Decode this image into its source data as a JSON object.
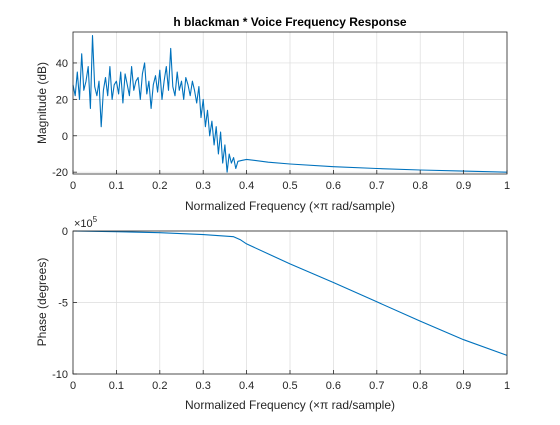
{
  "figure_title": "h blackman * Voice Frequency Response",
  "chart_data": [
    {
      "type": "line",
      "title": "h blackman * Voice Frequency Response",
      "xlabel": "Normalized Frequency  (×π rad/sample)",
      "ylabel": "Magnitude (dB)",
      "xlim": [
        0,
        1
      ],
      "ylim": [
        -21,
        57
      ],
      "xticks": [
        "0",
        "0.1",
        "0.2",
        "0.3",
        "0.4",
        "0.5",
        "0.6",
        "0.7",
        "0.8",
        "0.9",
        "1"
      ],
      "yticks": [
        "-20",
        "0",
        "20",
        "40"
      ],
      "ytick_values": [
        -20,
        0,
        20,
        40
      ],
      "grid": true,
      "color": "#0072BD",
      "series": [
        {
          "x": [
            0,
            0.005,
            0.01,
            0.015,
            0.02,
            0.025,
            0.03,
            0.035,
            0.04,
            0.045,
            0.05,
            0.055,
            0.06,
            0.065,
            0.07,
            0.075,
            0.08,
            0.085,
            0.09,
            0.095,
            0.1,
            0.105,
            0.11,
            0.115,
            0.12,
            0.125,
            0.13,
            0.135,
            0.14,
            0.145,
            0.15,
            0.155,
            0.16,
            0.165,
            0.17,
            0.175,
            0.18,
            0.185,
            0.19,
            0.195,
            0.2,
            0.205,
            0.21,
            0.215,
            0.22,
            0.225,
            0.23,
            0.235,
            0.24,
            0.245,
            0.25,
            0.255,
            0.26,
            0.265,
            0.27,
            0.275,
            0.28,
            0.285,
            0.29,
            0.295,
            0.3,
            0.305,
            0.31,
            0.315,
            0.32,
            0.325,
            0.33,
            0.335,
            0.34,
            0.345,
            0.35,
            0.355,
            0.36,
            0.365,
            0.37,
            0.375,
            0.38,
            0.39,
            0.4,
            0.45,
            0.5,
            0.6,
            0.7,
            0.8,
            0.9,
            1.0
          ],
          "y": [
            28,
            22,
            35,
            20,
            45,
            25,
            30,
            38,
            15,
            55,
            27,
            22,
            30,
            5,
            25,
            32,
            22,
            38,
            20,
            28,
            30,
            23,
            35,
            18,
            34,
            28,
            22,
            38,
            25,
            30,
            32,
            20,
            34,
            40,
            23,
            30,
            15,
            28,
            33,
            24,
            36,
            20,
            30,
            38,
            25,
            48,
            27,
            22,
            35,
            25,
            30,
            20,
            32,
            28,
            22,
            30,
            25,
            18,
            27,
            10,
            20,
            5,
            14,
            0,
            8,
            -5,
            5,
            -10,
            2,
            -15,
            -5,
            -20,
            -10,
            -15,
            -12,
            -18,
            -14,
            -13.5,
            -13,
            -14.5,
            -15.5,
            -17,
            -18,
            -18.8,
            -19.4,
            -20
          ]
        }
      ]
    },
    {
      "type": "line",
      "title": "",
      "xlabel": "Normalized Frequency  (×π rad/sample)",
      "ylabel": "Phase (degrees)",
      "xlim": [
        0,
        1
      ],
      "ylim": [
        -10,
        0
      ],
      "xticks": [
        "0",
        "0.1",
        "0.2",
        "0.3",
        "0.4",
        "0.5",
        "0.6",
        "0.7",
        "0.8",
        "0.9",
        "1"
      ],
      "yticks": [
        "0",
        "-5",
        "-10"
      ],
      "ytick_values": [
        0,
        -5,
        -10
      ],
      "exponent_base": "×10",
      "exponent_power": "5",
      "grid": true,
      "color": "#0072BD",
      "series": [
        {
          "x": [
            0,
            0.1,
            0.2,
            0.3,
            0.37,
            0.385,
            0.4,
            0.5,
            0.6,
            0.7,
            0.8,
            0.9,
            1.0
          ],
          "y": [
            0,
            -0.05,
            -0.12,
            -0.25,
            -0.4,
            -0.6,
            -0.9,
            -2.3,
            -3.6,
            -4.95,
            -6.3,
            -7.6,
            -8.7
          ]
        }
      ]
    }
  ]
}
